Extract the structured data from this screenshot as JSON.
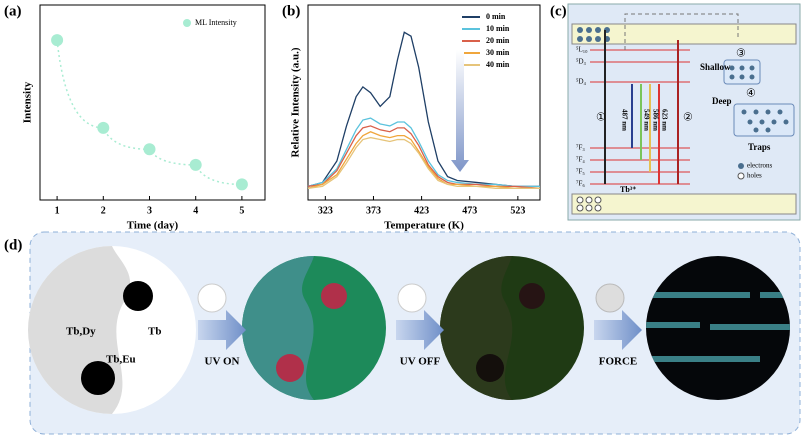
{
  "panels": [
    "(a)",
    "(b)",
    "(c)",
    "(d)"
  ],
  "chart_data": [
    {
      "type": "scatter",
      "xlabel": "Time (day)",
      "ylabel": "Intensity",
      "x": [
        1,
        2,
        3,
        4,
        5
      ],
      "xlim": [
        0.63,
        5.5
      ],
      "xticks": [
        1,
        2,
        3,
        4,
        5
      ],
      "ylim": [
        0,
        1
      ],
      "legend": "upper right",
      "series": [
        {
          "name": "ML Intensity",
          "color": "#a8ecd2",
          "values": [
            0.82,
            0.37,
            0.26,
            0.18,
            0.08
          ]
        }
      ]
    },
    {
      "type": "line",
      "xlabel": "Temperature (K)",
      "ylabel": "Relative Intensity (a.u.)",
      "x": [
        305,
        320,
        335,
        345,
        355,
        362,
        370,
        380,
        390,
        398,
        405,
        412,
        420,
        430,
        440,
        450,
        460,
        480,
        500,
        520,
        546
      ],
      "xlim": [
        305,
        546
      ],
      "xticks": [
        323,
        373,
        423,
        473,
        523
      ],
      "ylim": [
        0,
        1
      ],
      "legend": "upper right",
      "series": [
        {
          "name": "0 min",
          "color": "#1f3f66",
          "values": [
            0.07,
            0.09,
            0.2,
            0.38,
            0.53,
            0.58,
            0.55,
            0.48,
            0.53,
            0.72,
            0.86,
            0.84,
            0.68,
            0.4,
            0.2,
            0.12,
            0.1,
            0.09,
            0.08,
            0.07,
            0.07
          ]
        },
        {
          "name": "10 min",
          "color": "#5bc3dd",
          "values": [
            0.07,
            0.09,
            0.16,
            0.26,
            0.36,
            0.41,
            0.42,
            0.39,
            0.38,
            0.4,
            0.4,
            0.37,
            0.3,
            0.2,
            0.13,
            0.1,
            0.09,
            0.08,
            0.08,
            0.07,
            0.07
          ]
        },
        {
          "name": "20 min",
          "color": "#d9604a",
          "values": [
            0.07,
            0.08,
            0.15,
            0.24,
            0.33,
            0.37,
            0.38,
            0.36,
            0.35,
            0.37,
            0.37,
            0.34,
            0.28,
            0.18,
            0.12,
            0.09,
            0.08,
            0.08,
            0.07,
            0.07,
            0.06
          ]
        },
        {
          "name": "30 min",
          "color": "#f0a63c",
          "values": [
            0.06,
            0.08,
            0.13,
            0.21,
            0.29,
            0.33,
            0.35,
            0.33,
            0.32,
            0.33,
            0.33,
            0.31,
            0.25,
            0.17,
            0.11,
            0.08,
            0.08,
            0.07,
            0.07,
            0.06,
            0.06
          ]
        },
        {
          "name": "40 min",
          "color": "#e6c47a",
          "values": [
            0.06,
            0.07,
            0.12,
            0.19,
            0.27,
            0.31,
            0.32,
            0.31,
            0.3,
            0.31,
            0.31,
            0.29,
            0.24,
            0.16,
            0.1,
            0.08,
            0.07,
            0.07,
            0.06,
            0.06,
            0.06
          ]
        }
      ]
    }
  ],
  "diagram": {
    "levels": [
      "⁵L₁₀",
      "⁵D₃",
      "⁵D₄",
      "⁷F₃",
      "⁷F₄",
      "⁷F₅",
      "⁷F₆"
    ],
    "ion": "Tb³⁺",
    "transitions": [
      "487 nm",
      "549 nm",
      "586 nm",
      "623 nm"
    ],
    "steps": [
      "①",
      "②",
      "③",
      "④"
    ],
    "shallow": "Shallow",
    "deep": "Deep",
    "traps": "Traps",
    "legend": [
      "electrons",
      "holes"
    ]
  },
  "process": {
    "regions": [
      "Tb,Dy",
      "Tb",
      "Tb,Eu"
    ],
    "steps": [
      "UV ON",
      "UV OFF",
      "FORCE"
    ]
  }
}
